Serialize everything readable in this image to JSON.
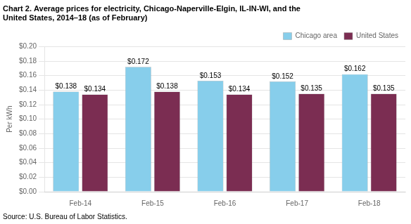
{
  "chart_data": {
    "type": "bar",
    "title": [
      "Chart 2. Average prices for electricity, Chicago-Naperville-Elgin, IL-IN-WI, and the",
      "United States, 2014–18 (as of February)"
    ],
    "ylabel": "Per kWh",
    "source": "Source: U.S. Bureau of Labor Statistics.",
    "categories": [
      "Feb-14",
      "Feb-15",
      "Feb-16",
      "Feb-17",
      "Feb-18"
    ],
    "series": [
      {
        "name": "Chicago area",
        "color": "#87CEEB",
        "values": [
          0.138,
          0.172,
          0.153,
          0.152,
          0.162
        ],
        "value_labels": [
          "$0.138",
          "$0.172",
          "$0.153",
          "$0.152",
          "$0.162"
        ]
      },
      {
        "name": "United States",
        "color": "#7B2D52",
        "values": [
          0.134,
          0.138,
          0.134,
          0.135,
          0.135
        ],
        "value_labels": [
          "$0.134",
          "$0.138",
          "$0.134",
          "$0.135",
          "$0.135"
        ]
      }
    ],
    "ylim": [
      0,
      0.2
    ],
    "yticks": [
      {
        "value": 0.0,
        "label": "$0.00"
      },
      {
        "value": 0.02,
        "label": "$0.02"
      },
      {
        "value": 0.04,
        "label": "$0.04"
      },
      {
        "value": 0.06,
        "label": "$0.06"
      },
      {
        "value": 0.08,
        "label": "$0.08"
      },
      {
        "value": 0.1,
        "label": "$0.10"
      },
      {
        "value": 0.12,
        "label": "$0.12"
      },
      {
        "value": 0.14,
        "label": "$0.14"
      },
      {
        "value": 0.16,
        "label": "$0.16"
      },
      {
        "value": 0.18,
        "label": "$0.18"
      },
      {
        "value": 0.2,
        "label": "$0.20"
      }
    ],
    "grid": true,
    "legend": "top-right",
    "data_labels": true
  }
}
